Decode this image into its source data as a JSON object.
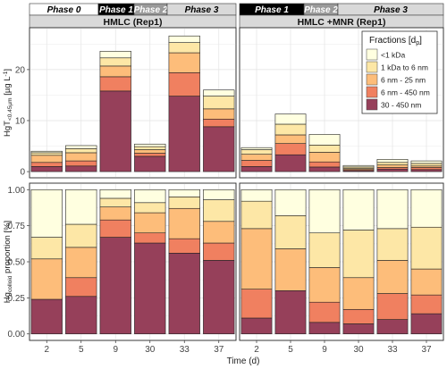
{
  "figure": {
    "x_title": "Time (d)",
    "legend_title": "Fractions [d",
    "legend_title_sub": "p",
    "legend_title_end": "]"
  },
  "phases": {
    "left": [
      {
        "label": "Phase 0",
        "color": "#ffffff",
        "text_color": "#000000"
      },
      {
        "label": "Phase 1",
        "color": "#000000",
        "text_color": "#ffffff"
      },
      {
        "label": "Phase 2",
        "color": "#9a9a9a",
        "text_color": "#ffffff"
      },
      {
        "label": "Phase 3",
        "color": "#d9d9d9",
        "text_color": "#000000"
      }
    ],
    "right": [
      {
        "label": "Phase 1",
        "color": "#000000",
        "text_color": "#ffffff"
      },
      {
        "label": "Phase 2",
        "color": "#9a9a9a",
        "text_color": "#ffffff"
      },
      {
        "label": "Phase 3",
        "color": "#d9d9d9",
        "text_color": "#000000"
      }
    ]
  },
  "chart_data": {
    "type": "bar",
    "categories": [
      "2",
      "5",
      "9",
      "30",
      "33",
      "37"
    ],
    "xlabel": "Time (d)",
    "legend_placement": "top-right",
    "grid": true,
    "series_names": [
      "<1 kDa",
      "1 kDa to 6 nm",
      "6 nm - 25 nm",
      "6 nm - 450 nm",
      "30 - 450 nm"
    ],
    "series_colors": [
      "#ffffe0",
      "#fde7a6",
      "#fdbd7a",
      "#f08060",
      "#96405a"
    ],
    "panels": [
      {
        "strip": "HMLC  (Rep1)",
        "ylabel_main": "HgT",
        "ylabel_sub": "<0.45µm",
        "ylabel_unit": " [µg L",
        "ylabel_sup": "-1",
        "ylabel_end": "]",
        "ylim": [
          0,
          27
        ],
        "yticks": [
          0,
          10,
          20
        ],
        "stack": [
          [
            0.3,
            0.5,
            1.4,
            0.8,
            1.0
          ],
          [
            0.6,
            0.8,
            1.6,
            1.0,
            1.1
          ],
          [
            1.3,
            1.6,
            2.1,
            2.8,
            15.8
          ],
          [
            0.5,
            0.6,
            0.7,
            0.6,
            3.0
          ],
          [
            1.3,
            2.0,
            3.9,
            4.6,
            14.8
          ],
          [
            1.2,
            2.5,
            2.0,
            1.5,
            8.8
          ]
        ]
      },
      {
        "strip": "HMLC +MNR (Rep1)",
        "ylim": [
          0,
          27
        ],
        "stack": [
          [
            0.4,
            0.9,
            1.2,
            1.2,
            1.0
          ],
          [
            2.0,
            2.1,
            1.7,
            2.2,
            3.3
          ],
          [
            2.1,
            1.4,
            1.9,
            1.0,
            0.9
          ],
          [
            0.3,
            0.3,
            0.2,
            0.2,
            0.2
          ],
          [
            0.6,
            0.5,
            0.5,
            0.3,
            0.5
          ],
          [
            0.5,
            0.5,
            0.3,
            0.4,
            0.4
          ]
        ]
      },
      {
        "ylabel_main": "Hg",
        "ylabel_sub": "colloid",
        "ylabel_end": " proportion [%]",
        "ylim": [
          0,
          1
        ],
        "yticks": [
          "0.00",
          "0.25",
          "0.50",
          "0.75",
          "1.00"
        ],
        "stack": [
          [
            0.33,
            0.15,
            0.28,
            0.0,
            0.24
          ],
          [
            0.24,
            0.16,
            0.21,
            0.13,
            0.26
          ],
          [
            0.06,
            0.06,
            0.09,
            0.12,
            0.67
          ],
          [
            0.09,
            0.07,
            0.14,
            0.07,
            0.63
          ],
          [
            0.05,
            0.08,
            0.21,
            0.1,
            0.56
          ],
          [
            0.07,
            0.15,
            0.15,
            0.12,
            0.51
          ]
        ]
      },
      {
        "ylim": [
          0,
          1
        ],
        "stack": [
          [
            0.08,
            0.19,
            0.42,
            0.2,
            0.11
          ],
          [
            0.18,
            0.23,
            0.29,
            0.0,
            0.3
          ],
          [
            0.3,
            0.24,
            0.24,
            0.14,
            0.08
          ],
          [
            0.28,
            0.33,
            0.22,
            0.1,
            0.07
          ],
          [
            0.27,
            0.22,
            0.23,
            0.18,
            0.1
          ],
          [
            0.26,
            0.29,
            0.18,
            0.13,
            0.14
          ]
        ]
      }
    ]
  }
}
